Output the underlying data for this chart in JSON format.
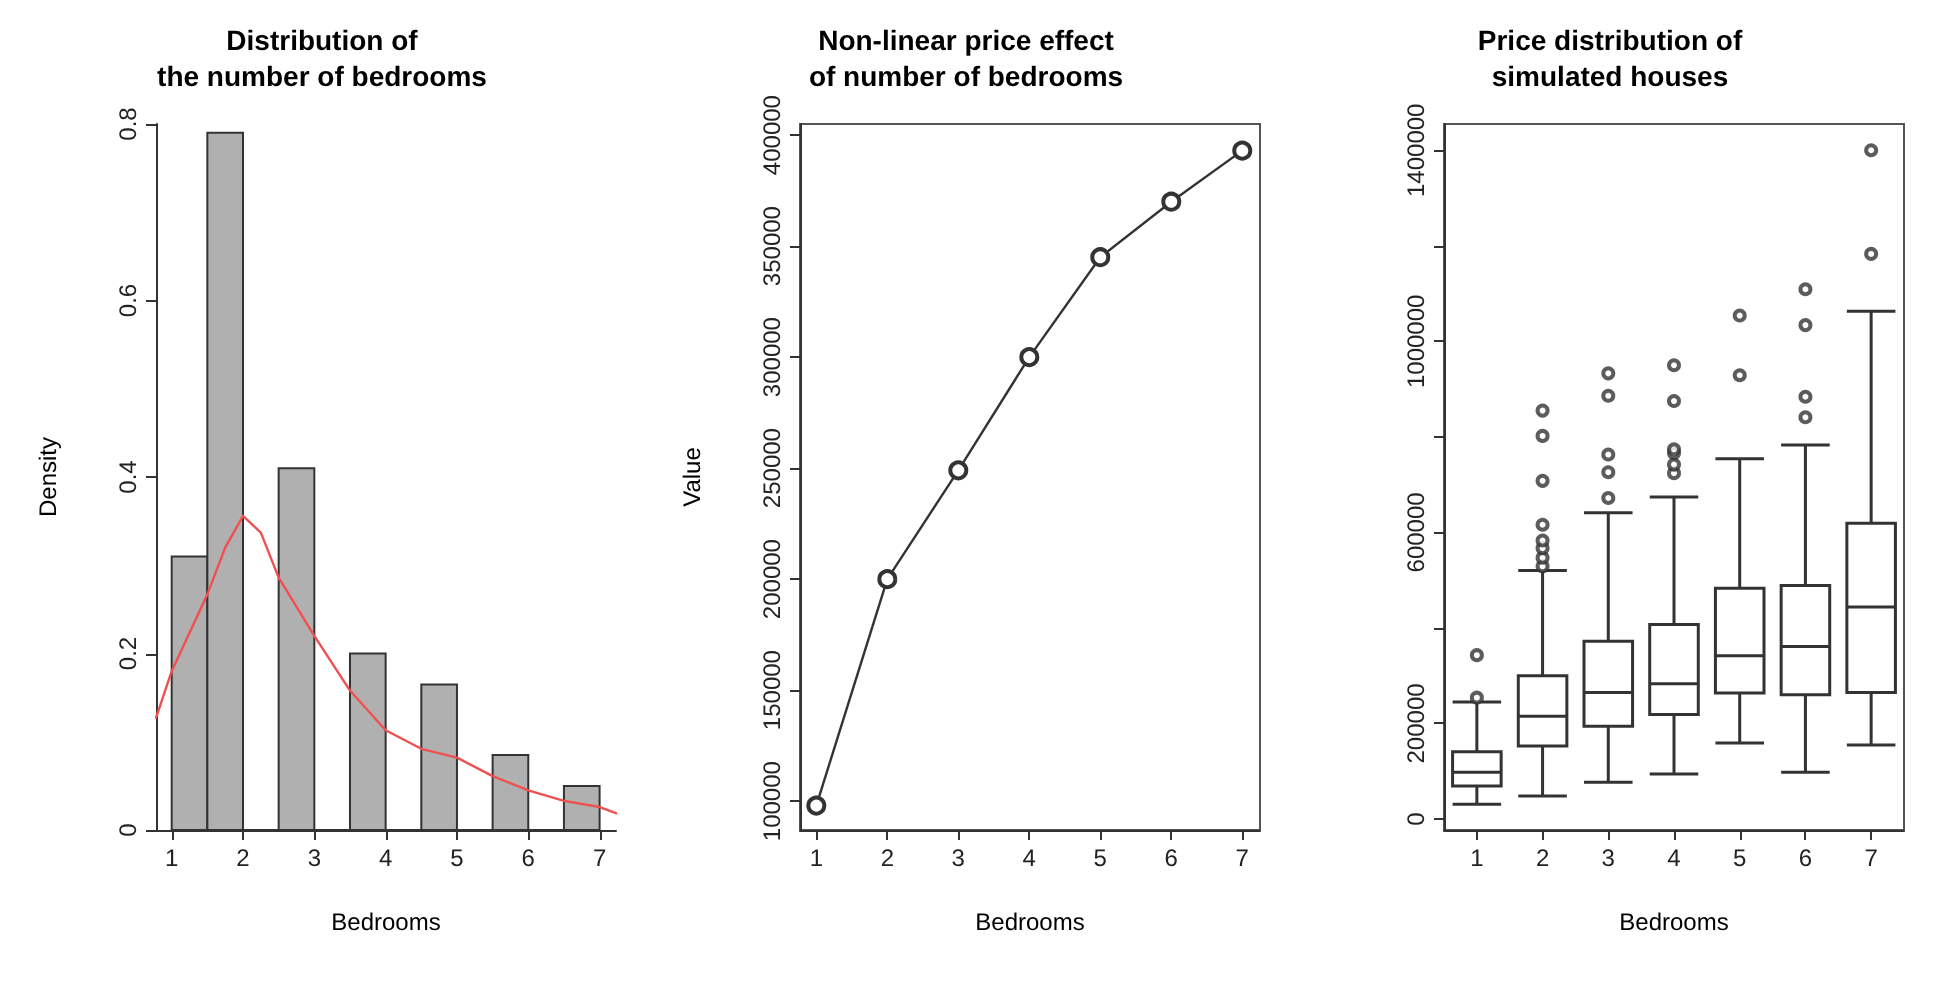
{
  "chart_data": [
    {
      "type": "histogram",
      "title": "Distribution of\nthe number of bedrooms",
      "xlabel": "Bedrooms",
      "ylabel": "Density",
      "xlim": [
        0.78,
        7.23
      ],
      "xticks": [
        1,
        2,
        3,
        4,
        5,
        6,
        7
      ],
      "ylim": [
        0,
        0.8
      ],
      "yticks": [
        0,
        0.2,
        0.4,
        0.6,
        0.8
      ],
      "grid": false,
      "marker": "none",
      "series": [
        {
          "type": "histogram",
          "color": "#b0b0b0",
          "bins": [
            1,
            1.5,
            2,
            2.5,
            3,
            3.5,
            4,
            4.5,
            5,
            5.5,
            6,
            6.5,
            7
          ],
          "values": [
            0.31,
            0.79,
            0,
            0.41,
            0,
            0.2,
            0,
            0.165,
            0,
            0.085,
            0,
            0.05
          ]
        },
        {
          "type": "line",
          "color": "#f05050",
          "x": [
            0.78,
            1,
            1.5,
            1.75,
            2,
            2.25,
            2.5,
            3,
            3.5,
            4,
            4.5,
            5,
            5.5,
            6,
            6.5,
            7,
            7.23
          ],
          "values": [
            0.127,
            0.18,
            0.267,
            0.32,
            0.356,
            0.337,
            0.286,
            0.22,
            0.158,
            0.113,
            0.092,
            0.082,
            0.061,
            0.045,
            0.033,
            0.026,
            0.019
          ]
        }
      ]
    },
    {
      "type": "line",
      "title": "Non-linear price effect\nof number of bedrooms",
      "xlabel": "Bedrooms",
      "ylabel": "Value",
      "xlim": [
        0.77,
        7.25
      ],
      "xticks": [
        1,
        2,
        3,
        4,
        5,
        6,
        7
      ],
      "ylim": [
        87000,
        405000
      ],
      "yticks": [
        100000,
        150000,
        200000,
        250000,
        300000,
        350000,
        400000
      ],
      "grid": false,
      "marker": "circle",
      "x": [
        1,
        2,
        3,
        4,
        5,
        6,
        7
      ],
      "values": [
        98000,
        200000,
        249000,
        300000,
        345000,
        370000,
        393000
      ],
      "color": "#333333"
    },
    {
      "type": "box",
      "title": "Price distribution of\nsimulated houses",
      "xlabel": "Bedrooms",
      "categories": [
        "1",
        "2",
        "3",
        "4",
        "5",
        "6",
        "7"
      ],
      "ylim": [
        -23000,
        1455000
      ],
      "yticks": [
        0,
        200000,
        {
          "value": 400000,
          "label": null
        },
        600000,
        {
          "value": 800000,
          "label": null
        },
        1000000,
        {
          "value": 1200000,
          "label": null
        },
        1400000
      ],
      "grid": false,
      "color": "#333333",
      "boxes": [
        {
          "low": 31000,
          "q1": 69000,
          "median": 98000,
          "q3": 141000,
          "high": 245000,
          "outliers": [
            254000,
            343000
          ]
        },
        {
          "low": 48000,
          "q1": 153000,
          "median": 215000,
          "q3": 300000,
          "high": 520000,
          "outliers": [
            529000,
            547000,
            567000,
            583000,
            616000,
            708000,
            802000,
            855000
          ]
        },
        {
          "low": 77000,
          "q1": 194000,
          "median": 265000,
          "q3": 372000,
          "high": 641000,
          "outliers": [
            672000,
            726000,
            763000,
            886000,
            933000
          ]
        },
        {
          "low": 94000,
          "q1": 219000,
          "median": 283000,
          "q3": 407000,
          "high": 674000,
          "outliers": [
            724000,
            742000,
            766000,
            774000,
            875000,
            950000
          ]
        },
        {
          "low": 159000,
          "q1": 264000,
          "median": 342000,
          "q3": 483000,
          "high": 754000,
          "outliers": [
            929000,
            1054000
          ]
        },
        {
          "low": 98000,
          "q1": 260000,
          "median": 361000,
          "q3": 489000,
          "high": 783000,
          "outliers": [
            841000,
            884000,
            1034000,
            1109000
          ]
        },
        {
          "low": 155000,
          "q1": 265000,
          "median": 444000,
          "q3": 619000,
          "high": 1063000,
          "outliers": [
            1183000,
            1400000
          ]
        }
      ]
    }
  ]
}
